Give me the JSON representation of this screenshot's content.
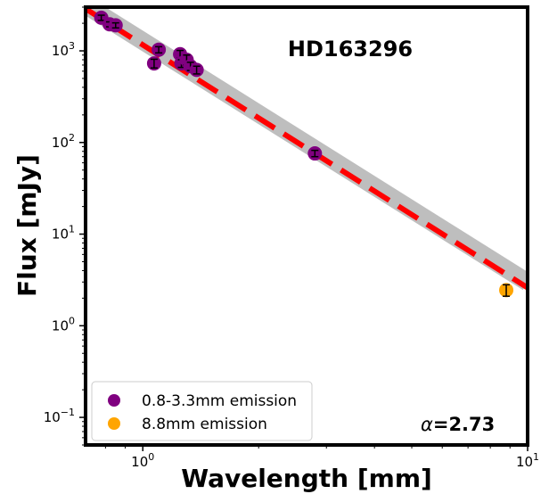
{
  "chart_data": {
    "type": "scatter",
    "title": "HD163296",
    "xlabel": "Wavelength [mm]",
    "ylabel": "Flux [mJy]",
    "xscale": "log",
    "yscale": "log",
    "xlim": [
      0.71,
      10
    ],
    "ylim": [
      0.05,
      3000
    ],
    "x_ticks": [
      {
        "value": 1,
        "base": "10",
        "exp": "0"
      },
      {
        "value": 10,
        "base": "10",
        "exp": "1"
      }
    ],
    "y_ticks": [
      {
        "value": 0.1,
        "base": "10",
        "exp": "−1"
      },
      {
        "value": 1,
        "base": "10",
        "exp": "0"
      },
      {
        "value": 10,
        "base": "10",
        "exp": "1"
      },
      {
        "value": 100,
        "base": "10",
        "exp": "2"
      },
      {
        "value": 1000,
        "base": "10",
        "exp": "3"
      }
    ],
    "grid": false,
    "legend_position": "lower-left",
    "annotation": {
      "prefix": "α",
      "value": "=2.73"
    },
    "series": [
      {
        "name": "0.8-3.3mm emission",
        "color": "#800080",
        "points": [
          {
            "x": 0.78,
            "y": 2300,
            "err": 150
          },
          {
            "x": 0.82,
            "y": 1950,
            "err": 120
          },
          {
            "x": 0.85,
            "y": 1900,
            "err": 120
          },
          {
            "x": 1.07,
            "y": 730,
            "err": 80
          },
          {
            "x": 1.1,
            "y": 1030,
            "err": 80
          },
          {
            "x": 1.25,
            "y": 920,
            "err": 90
          },
          {
            "x": 1.26,
            "y": 730,
            "err": 70
          },
          {
            "x": 1.3,
            "y": 800,
            "err": 100
          },
          {
            "x": 1.33,
            "y": 680,
            "err": 70
          },
          {
            "x": 1.38,
            "y": 620,
            "err": 60
          },
          {
            "x": 2.8,
            "y": 76,
            "err": 6
          }
        ]
      },
      {
        "name": "8.8mm emission",
        "color": "#FFA500",
        "points": [
          {
            "x": 8.8,
            "y": 2.45,
            "err": 0.35
          }
        ]
      }
    ],
    "fit": {
      "color": "#FF0000",
      "band_color": "#BEBEBE",
      "x": [
        0.7,
        10
      ],
      "y": [
        2990,
        2.6
      ]
    }
  }
}
